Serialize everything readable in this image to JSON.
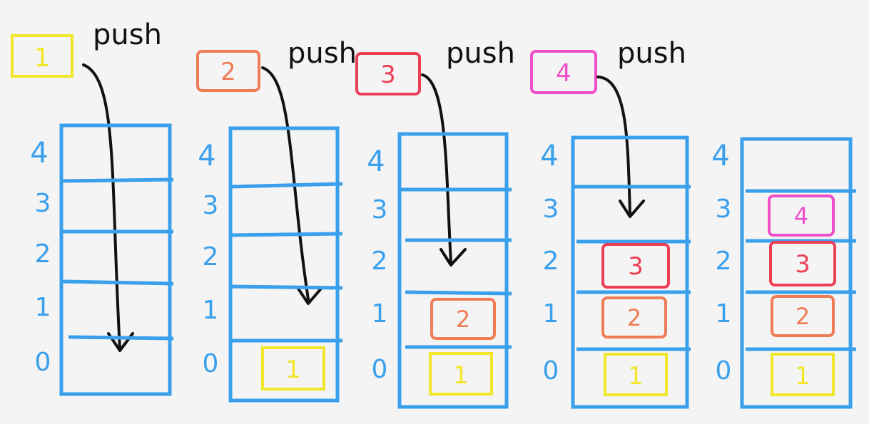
{
  "colors": {
    "background": "#f4f4f4",
    "stack": "#3aa0ec",
    "arrow": "#111111",
    "item1": "#f0e62a",
    "item2": "#f07c56",
    "item3": "#ec3f55",
    "item4": "#ee4fc9"
  },
  "push_label": "push",
  "index_labels": [
    "4",
    "3",
    "2",
    "1",
    "0"
  ],
  "items": [
    {
      "label": "1",
      "color_key": "item1"
    },
    {
      "label": "2",
      "color_key": "item2"
    },
    {
      "label": "3",
      "color_key": "item3"
    },
    {
      "label": "4",
      "color_key": "item4"
    }
  ],
  "stacks": [
    {
      "stage": 1,
      "contents": []
    },
    {
      "stage": 2,
      "contents": [
        "1"
      ]
    },
    {
      "stage": 3,
      "contents": [
        "1",
        "2"
      ]
    },
    {
      "stage": 4,
      "contents": [
        "1",
        "2",
        "3"
      ]
    },
    {
      "stage": 5,
      "contents": [
        "1",
        "2",
        "3",
        "4"
      ]
    }
  ]
}
